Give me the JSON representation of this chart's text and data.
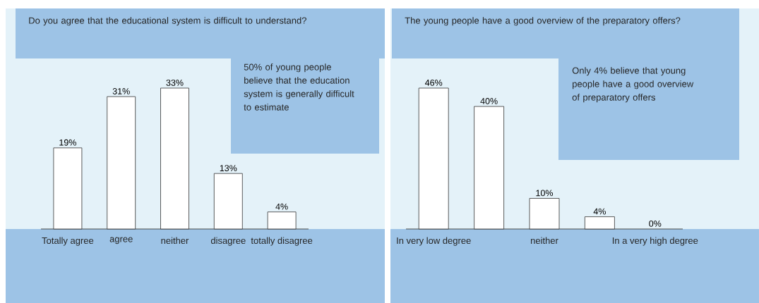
{
  "chart_data": [
    {
      "type": "bar",
      "title": "Do you agree that the educational system is difficult to understand?",
      "categories": [
        "Totally agree",
        "agree",
        "neither",
        "disagree",
        "totally disagree"
      ],
      "values": [
        19,
        31,
        33,
        13,
        4
      ],
      "value_labels": [
        "19%",
        "31%",
        "33%",
        "13%",
        "4%"
      ],
      "color": "#ffffff",
      "tick_labels": "x",
      "annotations": [
        "50% of young people believe that the education system is generally difficult to estimate"
      ]
    },
    {
      "type": "bar",
      "title": "The young people have a good overview of the preparatory offers?",
      "categories": [
        "In very low degree",
        null,
        "neither",
        null,
        "In a very high degree"
      ],
      "values": [
        46,
        40,
        10,
        4,
        0
      ],
      "value_labels": [
        "46%",
        "40%",
        "10%",
        "4%",
        "0%"
      ],
      "color": "#ffffff",
      "tick_labels": "x",
      "annotations": [
        "Only 4% believe that young people have a good overview of preparatory offers"
      ]
    }
  ]
}
